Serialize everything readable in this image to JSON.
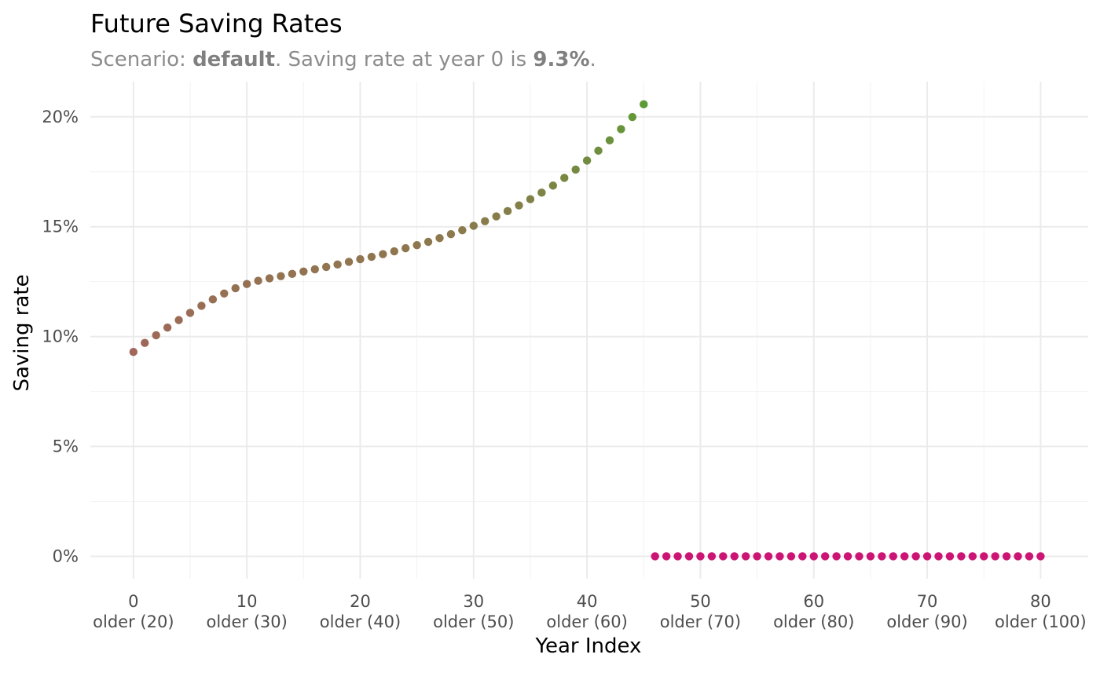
{
  "chart_data": {
    "type": "scatter",
    "title": "Future Saving Rates",
    "subtitle": {
      "prefix": "Scenario: ",
      "scenario": "default",
      "middle": ". Saving rate at year 0 is ",
      "rate": "9.3%",
      "suffix": "."
    },
    "xlabel": "Year Index",
    "ylabel": "Saving rate",
    "xlim": [
      -3.8,
      84.2
    ],
    "ylim": [
      -0.0102,
      0.216
    ],
    "x_ticks": [
      {
        "value": 0,
        "label": "0",
        "sublabel": "older (20)"
      },
      {
        "value": 10,
        "label": "10",
        "sublabel": "older (30)"
      },
      {
        "value": 20,
        "label": "20",
        "sublabel": "older (40)"
      },
      {
        "value": 30,
        "label": "30",
        "sublabel": "older (50)"
      },
      {
        "value": 40,
        "label": "40",
        "sublabel": "older (60)"
      },
      {
        "value": 50,
        "label": "50",
        "sublabel": "older (70)"
      },
      {
        "value": 60,
        "label": "60",
        "sublabel": "older (80)"
      },
      {
        "value": 70,
        "label": "70",
        "sublabel": "older (90)"
      },
      {
        "value": 80,
        "label": "80",
        "sublabel": "older (100)"
      }
    ],
    "y_ticks": [
      {
        "value": 0,
        "label": "0%"
      },
      {
        "value": 0.05,
        "label": "5%"
      },
      {
        "value": 0.1,
        "label": "10%"
      },
      {
        "value": 0.15,
        "label": "15%"
      },
      {
        "value": 0.2,
        "label": "20%"
      }
    ],
    "grid": true,
    "legend": "none",
    "color_start": "#a0675a",
    "color_mid": "#8b7a4c",
    "color_end": "#5e9a36",
    "color_zero": "#cc1474",
    "points": [
      {
        "x": 0,
        "y": 0.093
      },
      {
        "x": 1,
        "y": 0.0971
      },
      {
        "x": 2,
        "y": 0.1006
      },
      {
        "x": 3,
        "y": 0.1041
      },
      {
        "x": 4,
        "y": 0.1075
      },
      {
        "x": 5,
        "y": 0.1108
      },
      {
        "x": 6,
        "y": 0.114
      },
      {
        "x": 7,
        "y": 0.1169
      },
      {
        "x": 8,
        "y": 0.1196
      },
      {
        "x": 9,
        "y": 0.122
      },
      {
        "x": 10,
        "y": 0.1239
      },
      {
        "x": 11,
        "y": 0.1254
      },
      {
        "x": 12,
        "y": 0.1265
      },
      {
        "x": 13,
        "y": 0.1275
      },
      {
        "x": 14,
        "y": 0.1285
      },
      {
        "x": 15,
        "y": 0.1296
      },
      {
        "x": 16,
        "y": 0.1306
      },
      {
        "x": 17,
        "y": 0.1317
      },
      {
        "x": 18,
        "y": 0.1328
      },
      {
        "x": 19,
        "y": 0.134
      },
      {
        "x": 20,
        "y": 0.1352
      },
      {
        "x": 21,
        "y": 0.1363
      },
      {
        "x": 22,
        "y": 0.1375
      },
      {
        "x": 23,
        "y": 0.1388
      },
      {
        "x": 24,
        "y": 0.1402
      },
      {
        "x": 25,
        "y": 0.1416
      },
      {
        "x": 26,
        "y": 0.1431
      },
      {
        "x": 27,
        "y": 0.1448
      },
      {
        "x": 28,
        "y": 0.1466
      },
      {
        "x": 29,
        "y": 0.1484
      },
      {
        "x": 30,
        "y": 0.1504
      },
      {
        "x": 31,
        "y": 0.1525
      },
      {
        "x": 32,
        "y": 0.1547
      },
      {
        "x": 33,
        "y": 0.1571
      },
      {
        "x": 34,
        "y": 0.1597
      },
      {
        "x": 35,
        "y": 0.1625
      },
      {
        "x": 36,
        "y": 0.1655
      },
      {
        "x": 37,
        "y": 0.1687
      },
      {
        "x": 38,
        "y": 0.1722
      },
      {
        "x": 39,
        "y": 0.176
      },
      {
        "x": 40,
        "y": 0.1801
      },
      {
        "x": 41,
        "y": 0.1846
      },
      {
        "x": 42,
        "y": 0.1893
      },
      {
        "x": 43,
        "y": 0.1944
      },
      {
        "x": 44,
        "y": 0.1999
      },
      {
        "x": 45,
        "y": 0.2057
      },
      {
        "x": 46,
        "y": 0
      },
      {
        "x": 47,
        "y": 0
      },
      {
        "x": 48,
        "y": 0
      },
      {
        "x": 49,
        "y": 0
      },
      {
        "x": 50,
        "y": 0
      },
      {
        "x": 51,
        "y": 0
      },
      {
        "x": 52,
        "y": 0
      },
      {
        "x": 53,
        "y": 0
      },
      {
        "x": 54,
        "y": 0
      },
      {
        "x": 55,
        "y": 0
      },
      {
        "x": 56,
        "y": 0
      },
      {
        "x": 57,
        "y": 0
      },
      {
        "x": 58,
        "y": 0
      },
      {
        "x": 59,
        "y": 0
      },
      {
        "x": 60,
        "y": 0
      },
      {
        "x": 61,
        "y": 0
      },
      {
        "x": 62,
        "y": 0
      },
      {
        "x": 63,
        "y": 0
      },
      {
        "x": 64,
        "y": 0
      },
      {
        "x": 65,
        "y": 0
      },
      {
        "x": 66,
        "y": 0
      },
      {
        "x": 67,
        "y": 0
      },
      {
        "x": 68,
        "y": 0
      },
      {
        "x": 69,
        "y": 0
      },
      {
        "x": 70,
        "y": 0
      },
      {
        "x": 71,
        "y": 0
      },
      {
        "x": 72,
        "y": 0
      },
      {
        "x": 73,
        "y": 0
      },
      {
        "x": 74,
        "y": 0
      },
      {
        "x": 75,
        "y": 0
      },
      {
        "x": 76,
        "y": 0
      },
      {
        "x": 77,
        "y": 0
      },
      {
        "x": 78,
        "y": 0
      },
      {
        "x": 79,
        "y": 0
      },
      {
        "x": 80,
        "y": 0
      }
    ]
  }
}
